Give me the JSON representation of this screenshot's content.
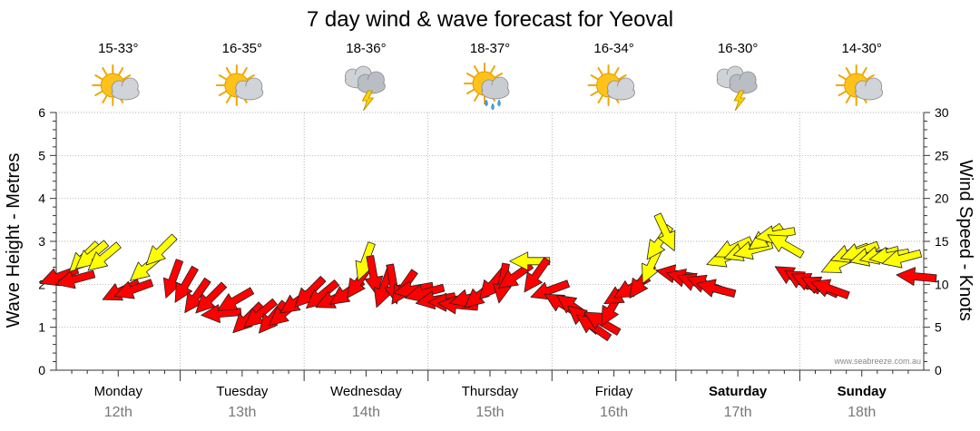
{
  "chart_data": {
    "type": "line",
    "title": "7 day wind & wave forecast for Yeoval",
    "ylabel_left": "Wave Height - Metres",
    "ylabel_right": "Wind Speed - Knots",
    "ylim_left": [
      0,
      6
    ],
    "ylim_right": [
      0,
      30
    ],
    "yticks_left": [
      "0",
      "1",
      "2",
      "3",
      "4",
      "5",
      "6"
    ],
    "yticks_right": [
      "0",
      "5",
      "10",
      "15",
      "20",
      "25",
      "30"
    ],
    "watermark": "www.seabreeze.com.au",
    "days": [
      {
        "name": "Monday",
        "date": "12th",
        "temp": "15-33°",
        "icon": "sun-cloud-icon",
        "bold": false
      },
      {
        "name": "Tuesday",
        "date": "13th",
        "temp": "16-35°",
        "icon": "sun-cloud-icon",
        "bold": false
      },
      {
        "name": "Wednesday",
        "date": "14th",
        "temp": "18-36°",
        "icon": "storm-cloud-icon",
        "bold": false
      },
      {
        "name": "Thursday",
        "date": "15th",
        "temp": "18-37°",
        "icon": "sun-rain-icon",
        "bold": false
      },
      {
        "name": "Friday",
        "date": "16th",
        "temp": "16-34°",
        "icon": "sun-cloud-icon",
        "bold": false
      },
      {
        "name": "Saturday",
        "date": "17th",
        "temp": "16-30°",
        "icon": "storm-cloud-icon",
        "bold": true
      },
      {
        "name": "Sunday",
        "date": "18th",
        "temp": "14-30°",
        "icon": "sun-cloud-icon",
        "bold": true
      }
    ],
    "colors": {
      "strong_wind": "#ff0000",
      "light_wind": "#ffff00",
      "arrow_stroke": "#222222",
      "grid": "#999999"
    },
    "series": [
      {
        "name": "Wind",
        "unit": "knots",
        "x_unit": "days from Monday 00:00",
        "points": [
          {
            "x": 0.02,
            "speed": 10.9,
            "dir": 250,
            "color": "red"
          },
          {
            "x": 0.15,
            "speed": 10.6,
            "dir": 255,
            "color": "red"
          },
          {
            "x": 0.22,
            "speed": 13.1,
            "dir": 225,
            "color": "yellow"
          },
          {
            "x": 0.28,
            "speed": 13.3,
            "dir": 230,
            "color": "yellow"
          },
          {
            "x": 0.38,
            "speed": 13.1,
            "dir": 230,
            "color": "yellow"
          },
          {
            "x": 0.52,
            "speed": 9.2,
            "dir": 245,
            "color": "red"
          },
          {
            "x": 0.62,
            "speed": 9.4,
            "dir": 250,
            "color": "red"
          },
          {
            "x": 0.72,
            "speed": 11.9,
            "dir": 230,
            "color": "yellow"
          },
          {
            "x": 0.84,
            "speed": 13.9,
            "dir": 225,
            "color": "yellow"
          },
          {
            "x": 0.94,
            "speed": 10.6,
            "dir": 200,
            "color": "red"
          },
          {
            "x": 1.04,
            "speed": 9.9,
            "dir": 210,
            "color": "red"
          },
          {
            "x": 1.13,
            "speed": 8.6,
            "dir": 215,
            "color": "red"
          },
          {
            "x": 1.24,
            "speed": 8.3,
            "dir": 225,
            "color": "red"
          },
          {
            "x": 1.33,
            "speed": 6.6,
            "dir": 265,
            "color": "red"
          },
          {
            "x": 1.44,
            "speed": 8.1,
            "dir": 240,
            "color": "red"
          },
          {
            "x": 1.54,
            "speed": 6.0,
            "dir": 225,
            "color": "red"
          },
          {
            "x": 1.64,
            "speed": 6.5,
            "dir": 230,
            "color": "red"
          },
          {
            "x": 1.74,
            "speed": 6.1,
            "dir": 220,
            "color": "red"
          },
          {
            "x": 1.84,
            "speed": 6.7,
            "dir": 230,
            "color": "red"
          },
          {
            "x": 1.94,
            "speed": 8.0,
            "dir": 235,
            "color": "red"
          },
          {
            "x": 2.04,
            "speed": 9.0,
            "dir": 225,
            "color": "red"
          },
          {
            "x": 2.14,
            "speed": 8.7,
            "dir": 230,
            "color": "red"
          },
          {
            "x": 2.24,
            "speed": 8.3,
            "dir": 245,
            "color": "red"
          },
          {
            "x": 2.34,
            "speed": 9.0,
            "dir": 235,
            "color": "red"
          },
          {
            "x": 2.44,
            "speed": 10.3,
            "dir": 215,
            "color": "red"
          },
          {
            "x": 2.49,
            "speed": 12.6,
            "dir": 200,
            "color": "yellow"
          },
          {
            "x": 2.56,
            "speed": 11.0,
            "dir": 170,
            "color": "red"
          },
          {
            "x": 2.64,
            "speed": 9.5,
            "dir": 200,
            "color": "red"
          },
          {
            "x": 2.72,
            "speed": 10.0,
            "dir": 170,
            "color": "red"
          },
          {
            "x": 2.8,
            "speed": 9.6,
            "dir": 215,
            "color": "red"
          },
          {
            "x": 2.88,
            "speed": 9.4,
            "dir": 260,
            "color": "red"
          },
          {
            "x": 2.97,
            "speed": 9.0,
            "dir": 255,
            "color": "red"
          },
          {
            "x": 3.06,
            "speed": 8.2,
            "dir": 260,
            "color": "red"
          },
          {
            "x": 3.16,
            "speed": 7.9,
            "dir": 270,
            "color": "red"
          },
          {
            "x": 3.24,
            "speed": 7.6,
            "dir": 275,
            "color": "red"
          },
          {
            "x": 3.33,
            "speed": 8.4,
            "dir": 255,
            "color": "red"
          },
          {
            "x": 3.42,
            "speed": 8.8,
            "dir": 230,
            "color": "red"
          },
          {
            "x": 3.52,
            "speed": 10.0,
            "dir": 220,
            "color": "red"
          },
          {
            "x": 3.6,
            "speed": 10.1,
            "dir": 190,
            "color": "red"
          },
          {
            "x": 3.7,
            "speed": 10.9,
            "dir": 235,
            "color": "red"
          },
          {
            "x": 3.82,
            "speed": 12.7,
            "dir": 270,
            "color": "yellow"
          },
          {
            "x": 3.87,
            "speed": 11.0,
            "dir": 215,
            "color": "red"
          },
          {
            "x": 3.98,
            "speed": 9.3,
            "dir": 250,
            "color": "red"
          },
          {
            "x": 4.08,
            "speed": 7.7,
            "dir": 300,
            "color": "red"
          },
          {
            "x": 4.17,
            "speed": 7.4,
            "dir": 305,
            "color": "red"
          },
          {
            "x": 4.25,
            "speed": 6.0,
            "dir": 310,
            "color": "red"
          },
          {
            "x": 4.33,
            "speed": 5.1,
            "dir": 305,
            "color": "red"
          },
          {
            "x": 4.4,
            "speed": 5.6,
            "dir": 300,
            "color": "red"
          },
          {
            "x": 4.48,
            "speed": 7.2,
            "dir": 210,
            "color": "red"
          },
          {
            "x": 4.56,
            "speed": 8.9,
            "dir": 240,
            "color": "red"
          },
          {
            "x": 4.64,
            "speed": 9.6,
            "dir": 240,
            "color": "red"
          },
          {
            "x": 4.72,
            "speed": 10.3,
            "dir": 215,
            "color": "red"
          },
          {
            "x": 4.8,
            "speed": 12.2,
            "dir": 205,
            "color": "yellow"
          },
          {
            "x": 4.86,
            "speed": 14.8,
            "dir": 215,
            "color": "yellow"
          },
          {
            "x": 4.92,
            "speed": 16.0,
            "dir": 155,
            "color": "yellow"
          },
          {
            "x": 5.0,
            "speed": 11.2,
            "dir": 280,
            "color": "red"
          },
          {
            "x": 5.08,
            "speed": 10.7,
            "dir": 285,
            "color": "red"
          },
          {
            "x": 5.16,
            "speed": 10.2,
            "dir": 290,
            "color": "red"
          },
          {
            "x": 5.24,
            "speed": 10.0,
            "dir": 290,
            "color": "red"
          },
          {
            "x": 5.32,
            "speed": 9.5,
            "dir": 285,
            "color": "red"
          },
          {
            "x": 5.4,
            "speed": 13.1,
            "dir": 250,
            "color": "yellow"
          },
          {
            "x": 5.46,
            "speed": 14.2,
            "dir": 245,
            "color": "yellow"
          },
          {
            "x": 5.54,
            "speed": 13.8,
            "dir": 250,
            "color": "yellow"
          },
          {
            "x": 5.62,
            "speed": 14.0,
            "dir": 255,
            "color": "yellow"
          },
          {
            "x": 5.72,
            "speed": 15.4,
            "dir": 235,
            "color": "yellow"
          },
          {
            "x": 5.8,
            "speed": 15.8,
            "dir": 260,
            "color": "yellow"
          },
          {
            "x": 5.88,
            "speed": 14.6,
            "dir": 300,
            "color": "yellow"
          },
          {
            "x": 5.94,
            "speed": 10.9,
            "dir": 300,
            "color": "red"
          },
          {
            "x": 6.02,
            "speed": 10.4,
            "dir": 300,
            "color": "red"
          },
          {
            "x": 6.08,
            "speed": 10.2,
            "dir": 295,
            "color": "red"
          },
          {
            "x": 6.16,
            "speed": 9.8,
            "dir": 295,
            "color": "red"
          },
          {
            "x": 6.24,
            "speed": 9.5,
            "dir": 290,
            "color": "red"
          },
          {
            "x": 6.32,
            "speed": 12.4,
            "dir": 245,
            "color": "yellow"
          },
          {
            "x": 6.4,
            "speed": 13.6,
            "dir": 250,
            "color": "yellow"
          },
          {
            "x": 6.48,
            "speed": 13.8,
            "dir": 250,
            "color": "yellow"
          },
          {
            "x": 6.56,
            "speed": 13.2,
            "dir": 255,
            "color": "yellow"
          },
          {
            "x": 6.64,
            "speed": 13.4,
            "dir": 255,
            "color": "yellow"
          },
          {
            "x": 6.72,
            "speed": 13.3,
            "dir": 260,
            "color": "yellow"
          },
          {
            "x": 6.82,
            "speed": 13.0,
            "dir": 255,
            "color": "yellow"
          },
          {
            "x": 6.94,
            "speed": 10.9,
            "dir": 275,
            "color": "red"
          }
        ]
      }
    ]
  }
}
